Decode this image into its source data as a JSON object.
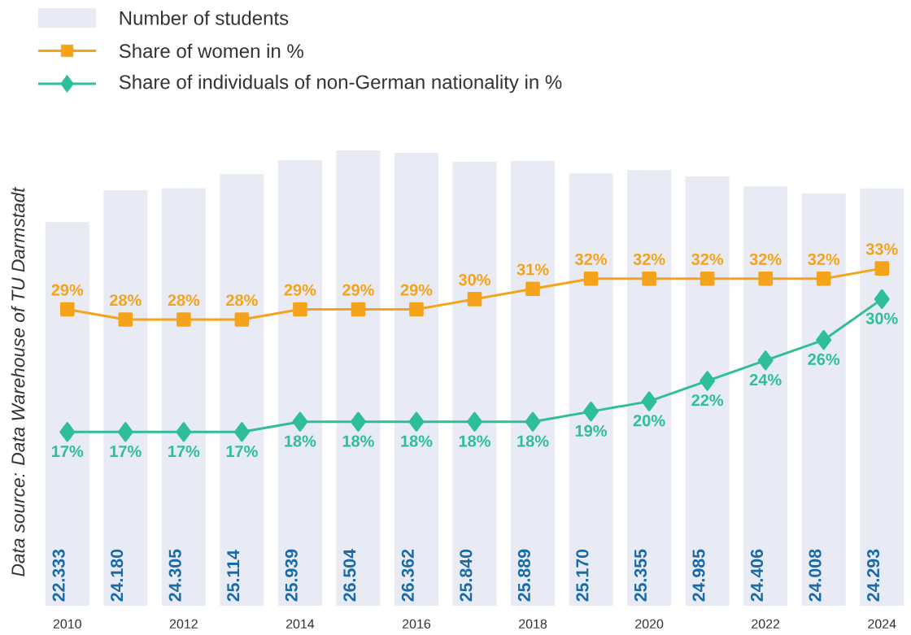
{
  "chart_data": {
    "type": "bar",
    "categories": [
      "2010",
      null,
      "2012",
      null,
      "2014",
      null,
      "2016",
      null,
      "2018",
      null,
      "2020",
      null,
      "2022",
      null,
      "2024"
    ],
    "series": [
      {
        "name": "Number of students",
        "color": "#e8ebf3",
        "values": [
          22333,
          24180,
          24305,
          25114,
          25939,
          26504,
          26362,
          25840,
          25889,
          25170,
          25355,
          24985,
          24406,
          24008,
          24293
        ],
        "value_labels": [
          "22.333",
          "24.180",
          "24.305",
          "25.114",
          "25.939",
          "26.504",
          "26.362",
          "25.840",
          "25.889",
          "25.170",
          "25.355",
          "24.985",
          "24.406",
          "24.008",
          "24.293"
        ]
      },
      {
        "name": "Share of women in %",
        "type": "line",
        "axis": "y2",
        "color": "#f5a31b",
        "marker": "square",
        "values": [
          29,
          28,
          28,
          28,
          29,
          29,
          29,
          30,
          31,
          32,
          32,
          32,
          32,
          32,
          33
        ],
        "value_labels": [
          "29%",
          "28%",
          "28%",
          "28%",
          "29%",
          "29%",
          "29%",
          "30%",
          "31%",
          "32%",
          "32%",
          "32%",
          "32%",
          "32%",
          "33%"
        ]
      },
      {
        "name": "Share of individuals of non-German nationality in %",
        "type": "line",
        "axis": "y2",
        "color": "#2ebf9a",
        "marker": "diamond",
        "values": [
          17,
          17,
          17,
          17,
          18,
          18,
          18,
          18,
          18,
          19,
          20,
          22,
          24,
          26,
          30
        ],
        "value_labels": [
          "17%",
          "17%",
          "17%",
          "17%",
          "18%",
          "18%",
          "18%",
          "18%",
          "18%",
          "19%",
          "20%",
          "22%",
          "24%",
          "26%",
          "30%"
        ]
      }
    ],
    "legend": "top left",
    "line_style": "solid",
    "annotations": [
      "Data source: Data Warehouse of TU Darmstadt"
    ]
  }
}
